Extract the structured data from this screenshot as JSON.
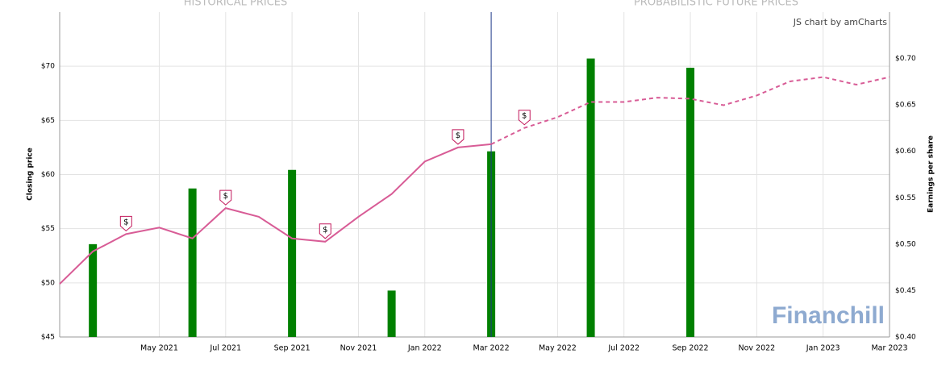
{
  "chart_data": {
    "type": "line",
    "section_titles": [
      "HISTORICAL PRICES",
      "PROBABILISTIC FUTURE PRICES"
    ],
    "credit": "JS chart by amCharts",
    "watermark": "Financhill",
    "ylabel": "Closing price",
    "y2label": "Earnings per share",
    "x": [
      "2021-02",
      "2021-03",
      "2021-04",
      "2021-05",
      "2021-06",
      "2021-07",
      "2021-08",
      "2021-09",
      "2021-10",
      "2021-11",
      "2021-12",
      "2022-01",
      "2022-02",
      "2022-03",
      "2022-04",
      "2022-05",
      "2022-06",
      "2022-07",
      "2022-08",
      "2022-09",
      "2022-10",
      "2022-11",
      "2022-12",
      "2023-01",
      "2023-02",
      "2023-03"
    ],
    "xlim": [
      "2021-02",
      "2023-03"
    ],
    "xticks": [
      {
        "value": "2021-05",
        "label": "May 2021"
      },
      {
        "value": "2021-07",
        "label": "Jul 2021"
      },
      {
        "value": "2021-09",
        "label": "Sep 2021"
      },
      {
        "value": "2021-11",
        "label": "Nov 2021"
      },
      {
        "value": "2022-01",
        "label": "Jan 2022"
      },
      {
        "value": "2022-03",
        "label": "Mar 2022"
      },
      {
        "value": "2022-05",
        "label": "May 2022"
      },
      {
        "value": "2022-07",
        "label": "Jul 2022"
      },
      {
        "value": "2022-09",
        "label": "Sep 2022"
      },
      {
        "value": "2022-11",
        "label": "Nov 2022"
      },
      {
        "value": "2023-01",
        "label": "Jan 2023"
      },
      {
        "value": "2023-03",
        "label": "Mar 2023"
      }
    ],
    "ylim": [
      45,
      75
    ],
    "yticks": [
      {
        "value": 45,
        "label": "$45"
      },
      {
        "value": 50,
        "label": "$50"
      },
      {
        "value": 55,
        "label": "$55"
      },
      {
        "value": 60,
        "label": "$60"
      },
      {
        "value": 65,
        "label": "$65"
      },
      {
        "value": 70,
        "label": "$70"
      }
    ],
    "y2lim": [
      0.4,
      0.75
    ],
    "y2ticks": [
      {
        "value": 0.4,
        "label": "$0.40"
      },
      {
        "value": 0.45,
        "label": "$0.45"
      },
      {
        "value": 0.5,
        "label": "$0.50"
      },
      {
        "value": 0.55,
        "label": "$0.55"
      },
      {
        "value": 0.6,
        "label": "$0.60"
      },
      {
        "value": 0.65,
        "label": "$0.65"
      },
      {
        "value": 0.7,
        "label": "$0.70"
      }
    ],
    "grid": true,
    "divider": "2022-03",
    "divider_color": "#1f3a8a",
    "series": [
      {
        "type": "line",
        "color": "#d85c96",
        "dashed": false,
        "values": [
          49.9,
          52.9,
          54.5,
          55.1,
          54.1,
          56.9,
          56.1,
          54.1,
          53.8,
          56.1,
          58.2,
          61.2,
          62.5,
          62.8,
          null,
          null,
          null,
          null,
          null,
          null,
          null,
          null,
          null,
          null,
          null,
          null
        ]
      },
      {
        "type": "line",
        "color": "#d85c96",
        "dashed": true,
        "values": [
          null,
          null,
          null,
          null,
          null,
          null,
          null,
          null,
          null,
          null,
          null,
          null,
          null,
          62.8,
          64.3,
          65.3,
          66.7,
          66.7,
          67.1,
          67.0,
          66.4,
          67.3,
          68.6,
          69.0,
          68.3,
          69.0
        ]
      },
      {
        "type": "bar",
        "axis": "y2",
        "color": "#008000",
        "x": [
          "2021-03",
          "2021-06",
          "2021-09",
          "2021-12",
          "2022-03",
          "2022-06",
          "2022-09"
        ],
        "values": [
          0.5,
          0.56,
          0.58,
          0.45,
          0.6,
          0.7,
          0.69
        ]
      }
    ],
    "dividends": {
      "x": [
        "2021-04",
        "2021-07",
        "2021-10",
        "2022-02",
        "2022-04"
      ],
      "labels": [
        "$",
        "$",
        "$",
        "$",
        "$"
      ],
      "color": "#c2185b"
    }
  }
}
